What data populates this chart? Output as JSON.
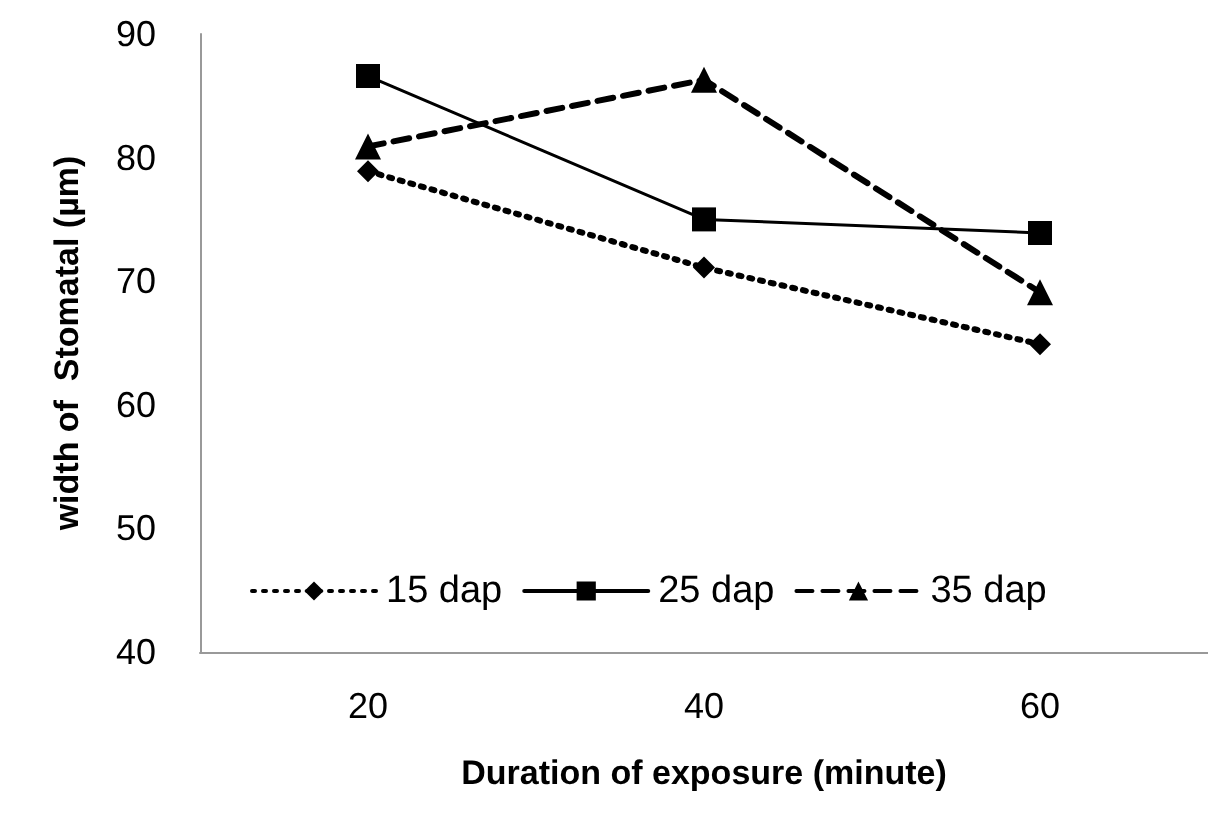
{
  "chart_data": {
    "type": "line",
    "xlabel": "Duration of exposure (minute)",
    "ylabel": "width of  Stomatal (µm)",
    "categories": [
      "20",
      "40",
      "60"
    ],
    "series": [
      {
        "name": "15 dap",
        "color": "#000000",
        "values": [
          78.9,
          71.1,
          64.9
        ],
        "marker": "diamond",
        "line_style": "dotted"
      },
      {
        "name": "25 dap",
        "color": "#000000",
        "values": [
          86.6,
          75.0,
          73.9
        ],
        "marker": "square",
        "line_style": "solid"
      },
      {
        "name": "35 dap",
        "color": "#000000",
        "values": [
          80.9,
          86.3,
          69.1
        ],
        "marker": "triangle",
        "line_style": "dashed"
      }
    ],
    "ylim": [
      40,
      90
    ],
    "yticks": [
      40,
      50,
      60,
      70,
      80,
      90
    ],
    "grid": false,
    "legend": "bottom"
  }
}
